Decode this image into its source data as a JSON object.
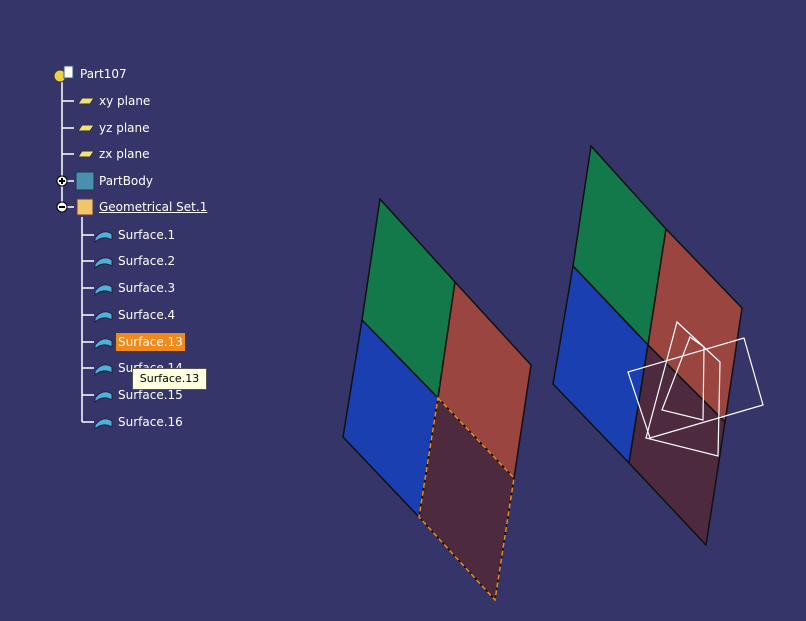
{
  "tree": {
    "root": "Part107",
    "planes": [
      "xy plane",
      "yz plane",
      "zx plane"
    ],
    "body": "PartBody",
    "geometrical_set": "Geometrical Set.1",
    "surfaces": [
      "Surface.1",
      "Surface.2",
      "Surface.3",
      "Surface.4",
      "Surface.13",
      "Surface.14",
      "Surface.15",
      "Surface.16"
    ],
    "selected": "Surface.13"
  },
  "tooltip": {
    "text": "Surface.13"
  }
}
